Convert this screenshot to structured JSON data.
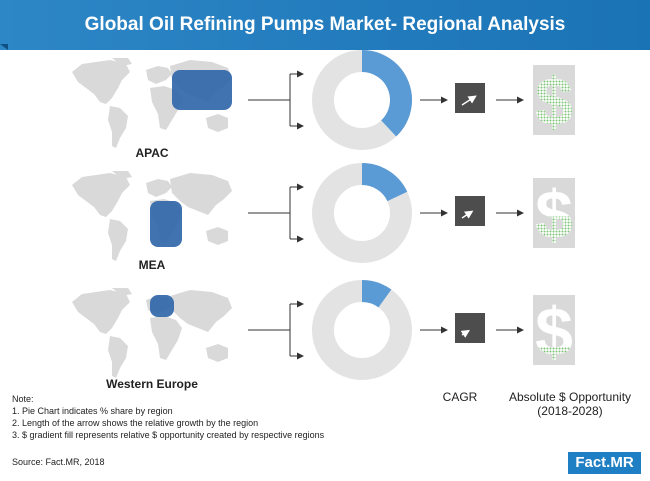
{
  "title": "Global Oil Refining Pumps Market- Regional Analysis",
  "chart_data": {
    "type": "pie",
    "regions": [
      {
        "name": "APAC",
        "share_pct": 38,
        "cagr_arrow": "long",
        "opportunity_fill_pct": 100
      },
      {
        "name": "MEA",
        "share_pct": 18,
        "cagr_arrow": "medium",
        "opportunity_fill_pct": 45
      },
      {
        "name": "Western Europe",
        "share_pct": 10,
        "cagr_arrow": "short",
        "opportunity_fill_pct": 25
      }
    ],
    "columns": {
      "cagr": "CAGR",
      "opportunity": "Absolute $ Opportunity",
      "opportunity_period": "(2018-2028)"
    }
  },
  "notes": {
    "heading": "Note:",
    "items": [
      "1. Pie Chart indicates % share by region",
      "2. Length of the arrow shows the relative growth by the region",
      "3. $ gradient fill represents relative $ opportunity created by respective regions"
    ]
  },
  "source": "Source: Fact.MR, 2018",
  "logo": "Fact.MR",
  "colors": {
    "accent": "#5b9bd5",
    "ring": "#e3e3e3",
    "map": "#d9d9d9",
    "region": "#2e64a8",
    "cagr_box": "#4d4d4d",
    "dollar_fill": "#7cc576",
    "dollar_bg": "#d9d9d9"
  }
}
